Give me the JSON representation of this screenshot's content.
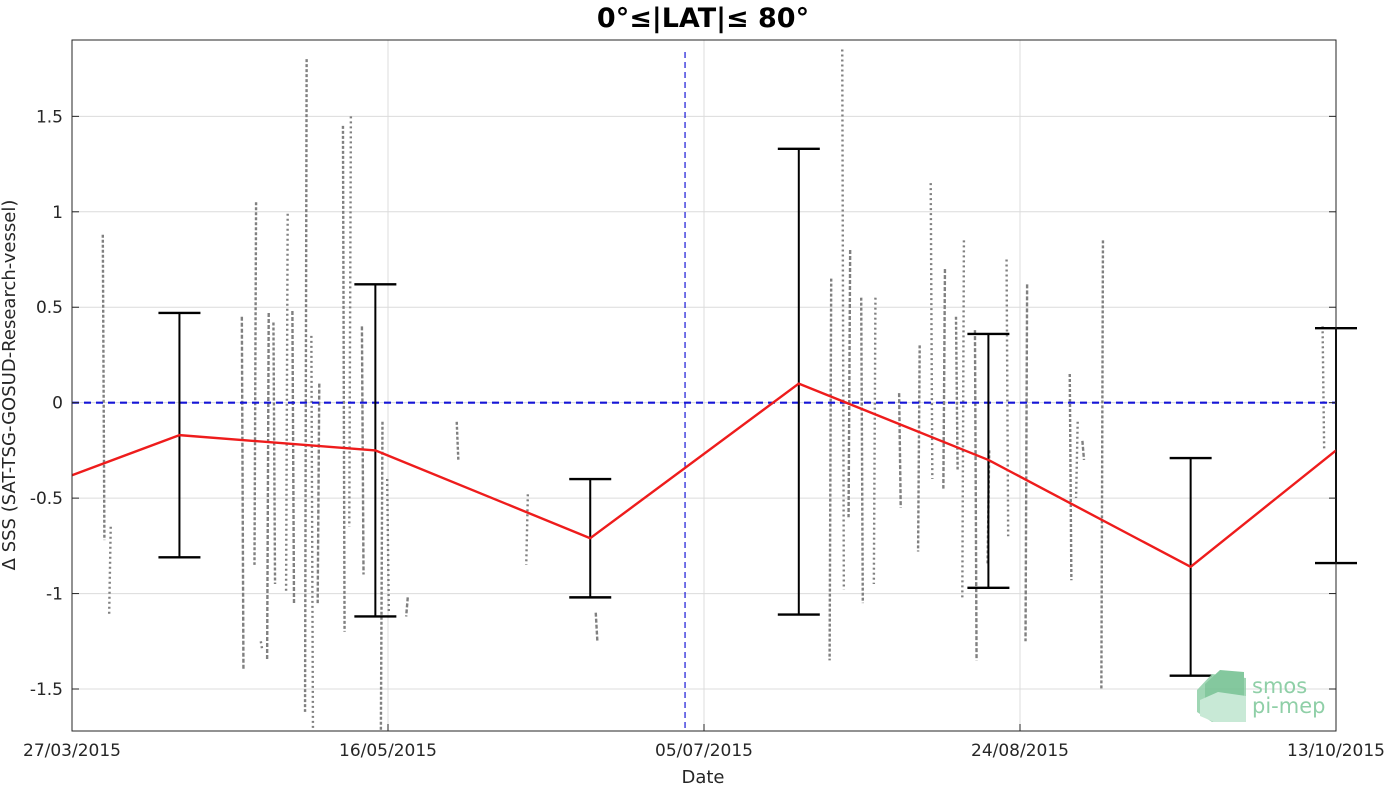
{
  "chart_data": {
    "type": "line",
    "title": "0°≤|LAT|≤ 80°",
    "xlabel": "Date",
    "ylabel": "Δ SSS (SAT-TSG-GOSUD-Research-vessel)",
    "x_axis_type": "date",
    "xlim": [
      "2015-03-27",
      "2015-10-13"
    ],
    "ylim": [
      -1.72,
      1.9
    ],
    "x_ticks": [
      {
        "date": "2015-03-27",
        "label": "27/03/2015"
      },
      {
        "date": "2015-05-16",
        "label": "16/05/2015"
      },
      {
        "date": "2015-07-05",
        "label": "05/07/2015"
      },
      {
        "date": "2015-08-24",
        "label": "24/08/2015"
      },
      {
        "date": "2015-10-13",
        "label": "13/10/2015"
      }
    ],
    "y_ticks": [
      {
        "value": 1.5,
        "label": "1.5"
      },
      {
        "value": 1,
        "label": "1"
      },
      {
        "value": 0.5,
        "label": "0.5"
      },
      {
        "value": 0,
        "label": "0"
      },
      {
        "value": -0.5,
        "label": "-0.5"
      },
      {
        "value": -1,
        "label": "-1"
      },
      {
        "value": -1.5,
        "label": "-1.5"
      }
    ],
    "grid": true,
    "reference_lines": [
      {
        "orientation": "horizontal",
        "value": 0,
        "style": "dashed",
        "color": "#1515d6"
      },
      {
        "orientation": "vertical",
        "date": "2015-07-02",
        "style": "dashed",
        "color": "#1515d6"
      }
    ],
    "series": [
      {
        "type": "line",
        "color": "#ee1c1c",
        "points": [
          {
            "date": "2015-03-27",
            "y": -0.38
          },
          {
            "date": "2015-04-13",
            "y": -0.17
          },
          {
            "date": "2015-05-14",
            "y": -0.25
          },
          {
            "date": "2015-06-17",
            "y": -0.71
          },
          {
            "date": "2015-07-20",
            "y": 0.1
          },
          {
            "date": "2015-08-19",
            "y": -0.3
          },
          {
            "date": "2015-09-20",
            "y": -0.86
          },
          {
            "date": "2015-10-13",
            "y": -0.25
          }
        ]
      },
      {
        "type": "errorbar",
        "color": "#000000",
        "bars": [
          {
            "date": "2015-04-13",
            "low": -0.81,
            "high": 0.47
          },
          {
            "date": "2015-05-14",
            "low": -1.12,
            "high": 0.62
          },
          {
            "date": "2015-06-17",
            "low": -1.02,
            "high": -0.4
          },
          {
            "date": "2015-07-20",
            "low": -1.11,
            "high": 1.33
          },
          {
            "date": "2015-08-19",
            "low": -0.97,
            "high": 0.36
          },
          {
            "date": "2015-09-20",
            "low": -1.43,
            "high": -0.29
          },
          {
            "date": "2015-10-13",
            "low": -0.84,
            "high": 0.39
          }
        ]
      },
      {
        "type": "scatter",
        "color": "#808080",
        "streaks": [
          {
            "date": "2015-04-01",
            "low": -0.72,
            "high": 0.88
          },
          {
            "date": "2015-04-02",
            "low": -1.12,
            "high": -0.65
          },
          {
            "date": "2015-04-23",
            "low": -1.4,
            "high": 0.45
          },
          {
            "date": "2015-04-25",
            "low": -0.85,
            "high": 1.05
          },
          {
            "date": "2015-04-26",
            "low": -1.3,
            "high": -1.25
          },
          {
            "date": "2015-04-27",
            "low": -1.35,
            "high": 0.47
          },
          {
            "date": "2015-04-28",
            "low": -0.95,
            "high": 0.42
          },
          {
            "date": "2015-04-30",
            "low": -1.0,
            "high": 0.99
          },
          {
            "date": "2015-05-01",
            "low": -1.05,
            "high": 0.48
          },
          {
            "date": "2015-05-03",
            "low": -1.62,
            "high": 1.8
          },
          {
            "date": "2015-05-04",
            "low": -1.72,
            "high": 0.35
          },
          {
            "date": "2015-05-05",
            "low": -1.05,
            "high": 0.1
          },
          {
            "date": "2015-05-09",
            "low": -1.2,
            "high": 1.45
          },
          {
            "date": "2015-05-10",
            "low": -0.65,
            "high": 1.5
          },
          {
            "date": "2015-05-12",
            "low": -0.9,
            "high": 0.4
          },
          {
            "date": "2015-05-15",
            "low": -1.72,
            "high": -0.1
          },
          {
            "date": "2015-05-16",
            "low": -1.1,
            "high": -0.4
          },
          {
            "date": "2015-05-19",
            "low": -1.12,
            "high": -1.02
          },
          {
            "date": "2015-05-27",
            "low": -0.3,
            "high": -0.1
          },
          {
            "date": "2015-06-07",
            "low": -0.85,
            "high": -0.48
          },
          {
            "date": "2015-06-18",
            "low": -1.25,
            "high": -1.1
          },
          {
            "date": "2015-07-25",
            "low": -1.35,
            "high": 0.65
          },
          {
            "date": "2015-07-27",
            "low": -0.98,
            "high": 1.85
          },
          {
            "date": "2015-07-28",
            "low": -0.6,
            "high": 0.8
          },
          {
            "date": "2015-07-30",
            "low": -1.05,
            "high": 0.55
          },
          {
            "date": "2015-08-01",
            "low": -0.95,
            "high": 0.55
          },
          {
            "date": "2015-08-05",
            "low": -0.55,
            "high": 0.05
          },
          {
            "date": "2015-08-08",
            "low": -0.78,
            "high": 0.3
          },
          {
            "date": "2015-08-10",
            "low": -0.4,
            "high": 1.15
          },
          {
            "date": "2015-08-12",
            "low": -0.45,
            "high": 0.7
          },
          {
            "date": "2015-08-14",
            "low": -0.35,
            "high": 0.45
          },
          {
            "date": "2015-08-15",
            "low": -1.02,
            "high": 0.85
          },
          {
            "date": "2015-08-17",
            "low": -1.35,
            "high": 0.38
          },
          {
            "date": "2015-08-19",
            "low": -0.85,
            "high": -0.25
          },
          {
            "date": "2015-08-22",
            "low": -0.7,
            "high": 0.75
          },
          {
            "date": "2015-08-25",
            "low": -1.25,
            "high": 0.62
          },
          {
            "date": "2015-09-01",
            "low": -0.93,
            "high": 0.15
          },
          {
            "date": "2015-09-02",
            "low": -0.5,
            "high": -0.1
          },
          {
            "date": "2015-09-03",
            "low": -0.3,
            "high": -0.2
          },
          {
            "date": "2015-09-06",
            "low": -1.5,
            "high": 0.85
          },
          {
            "date": "2015-10-11",
            "low": -0.25,
            "high": 0.4
          }
        ]
      }
    ]
  },
  "logo": {
    "line1": "smos",
    "line2": "pi-mep"
  }
}
